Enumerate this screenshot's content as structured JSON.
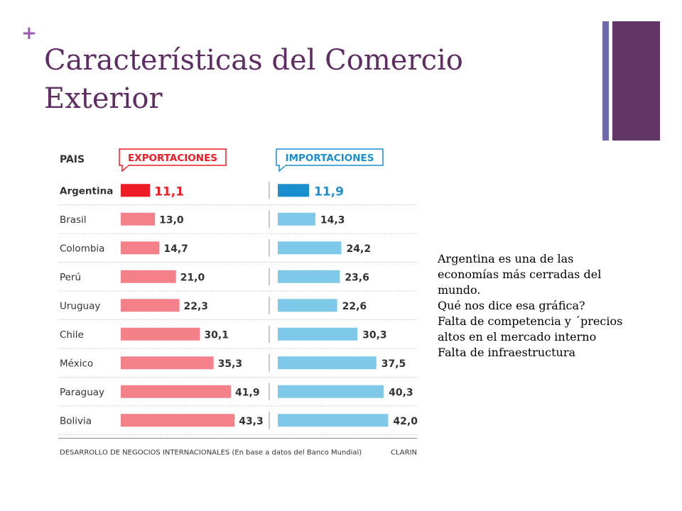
{
  "slide": {
    "plus_symbol": "+",
    "title": "Características del Comercio Exterior",
    "notes": [
      "Argentina es una de las",
      "economías más cerradas del",
      "mundo.",
      "Qué nos dice esa gráfica?",
      "Falta de competencia y ´precios",
      "altos en el mercado interno",
      "Falta de infraestructura"
    ]
  },
  "colors": {
    "title": "#5e2d63",
    "plus": "#9b59b6",
    "export_highlight": "#ee1c25",
    "export_bar": "#f4808a",
    "import_highlight": "#1a8fcf",
    "import_bar": "#7ec8e9"
  },
  "chart_data": {
    "type": "bar",
    "orientation": "horizontal",
    "category_header": "PAIS",
    "categories": [
      "Argentina",
      "Brasil",
      "Colombia",
      "Perú",
      "Uruguay",
      "Chile",
      "México",
      "Paraguay",
      "Bolivia"
    ],
    "series": [
      {
        "name": "EXPORTACIONES",
        "values": [
          11.1,
          13.0,
          14.7,
          21.0,
          22.3,
          30.1,
          35.3,
          41.9,
          43.3
        ],
        "labels": [
          "11,1",
          "13,0",
          "14,7",
          "21,0",
          "22,3",
          "30,1",
          "35,3",
          "41,9",
          "43,3"
        ]
      },
      {
        "name": "IMPORTACIONES",
        "values": [
          11.9,
          14.3,
          24.2,
          23.6,
          22.6,
          30.3,
          37.5,
          40.3,
          42.0
        ],
        "labels": [
          "11,9",
          "14,3",
          "24,2",
          "23,6",
          "22,6",
          "30,3",
          "37,5",
          "40,3",
          "42,0"
        ]
      }
    ],
    "highlight_category": "Argentina",
    "source": "DESARROLLO DE NEGOCIOS INTERNACIONALES (En base a datos del Banco Mundial)",
    "credit": "CLARIN"
  }
}
